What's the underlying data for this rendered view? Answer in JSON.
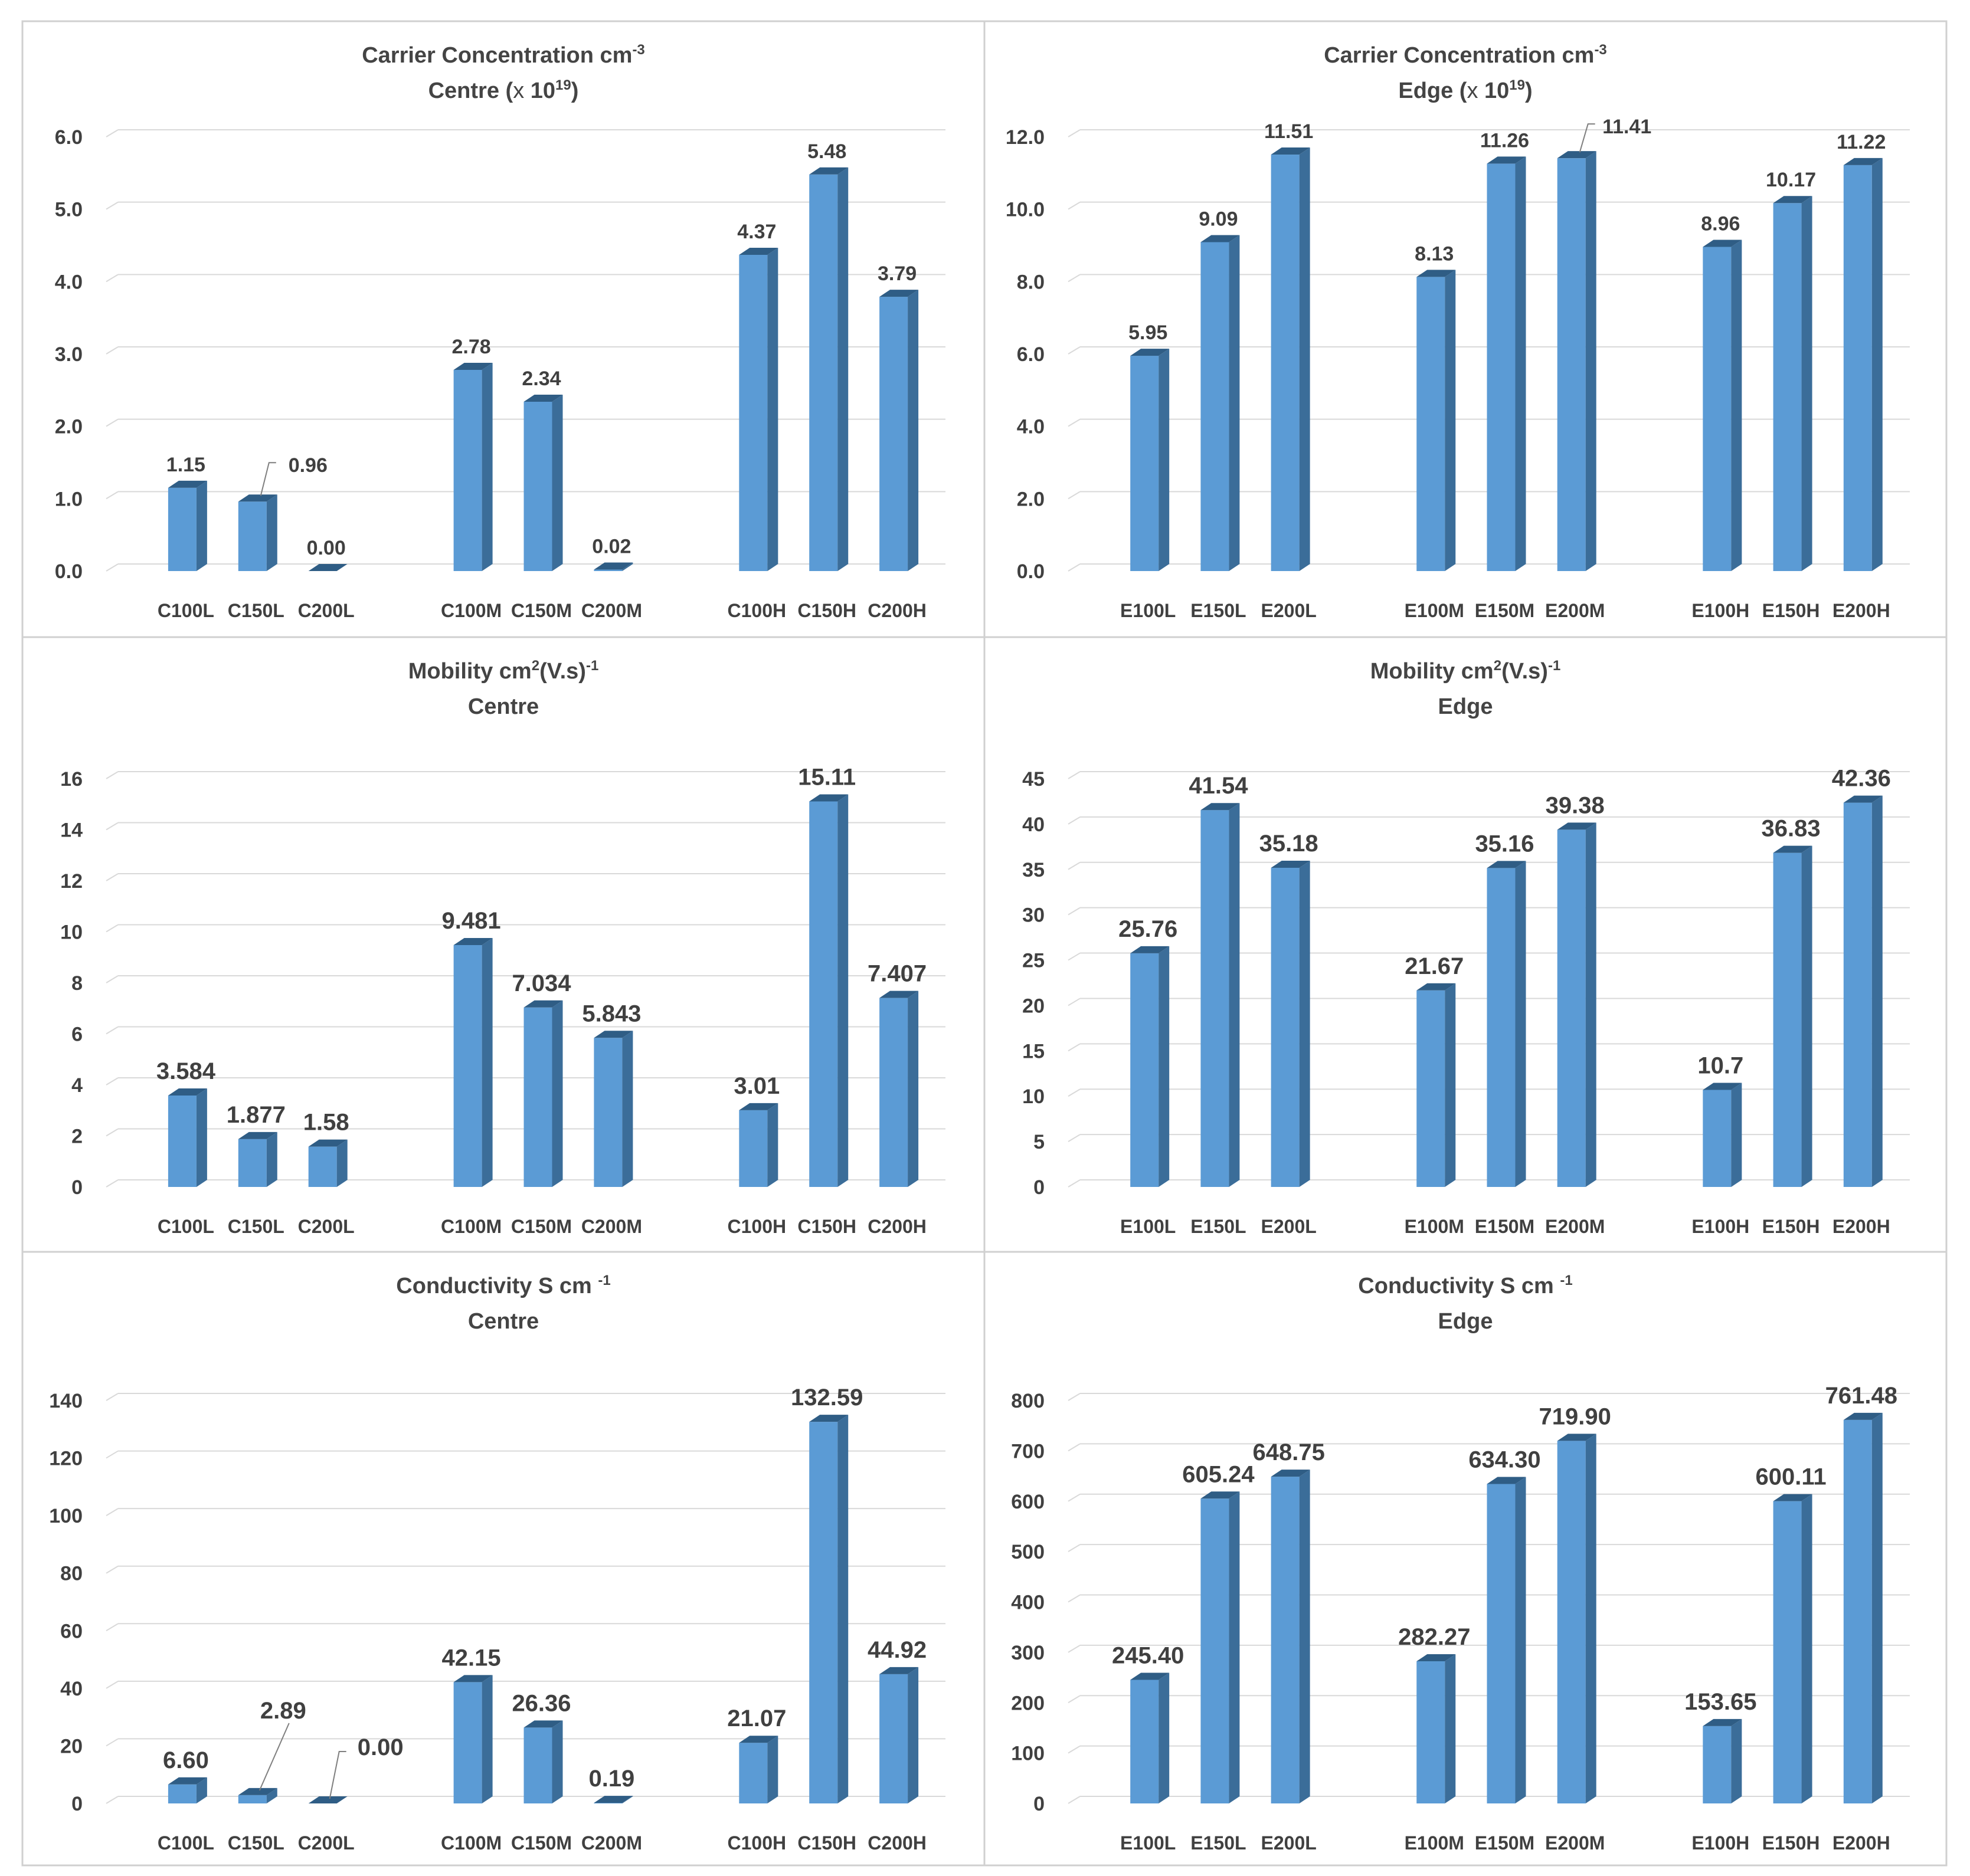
{
  "colors": {
    "bar_front": "#5b9bd5",
    "bar_side": "#3b6d99",
    "bar_top": "#2f5d85",
    "grid": "#d9d9d9",
    "text": "#404040",
    "panel_border": "#d0d0d0"
  },
  "chart_data": [
    {
      "type": "bar",
      "title": "Carrier Concentration cm-3",
      "title_parts": {
        "base": "Carrier Concentration cm",
        "sup": "-3"
      },
      "subtitle": "Centre (x 1019)",
      "subtitle_parts": {
        "pre": "Centre (",
        "times": "x",
        "mid": " 10",
        "sup": "19",
        "post": ")"
      },
      "categories": [
        "C100L",
        "C150L",
        "C200L",
        "C100M",
        "C150M",
        "C200M",
        "C100H",
        "C150H",
        "C200H"
      ],
      "values": [
        1.15,
        0.96,
        0.0,
        2.78,
        2.34,
        0.02,
        4.37,
        5.48,
        3.79
      ],
      "value_labels": [
        "1.15",
        "0.96",
        "0.00",
        "2.78",
        "2.34",
        "0.02",
        "4.37",
        "5.48",
        "3.79"
      ],
      "ylim": [
        0,
        6
      ],
      "yticks": [
        "0.0",
        "1.0",
        "2.0",
        "3.0",
        "4.0",
        "5.0",
        "6.0"
      ],
      "grid": true
    },
    {
      "type": "bar",
      "title": "Carrier Concentration cm-3",
      "title_parts": {
        "base": "Carrier Concentration cm",
        "sup": "-3"
      },
      "subtitle": "Edge (x 1019)",
      "subtitle_parts": {
        "pre": "Edge (",
        "times": "x",
        "mid": " 10",
        "sup": "19",
        "post": ")"
      },
      "categories": [
        "E100L",
        "E150L",
        "E200L",
        "E100M",
        "E150M",
        "E200M",
        "E100H",
        "E150H",
        "E200H"
      ],
      "values": [
        5.95,
        9.09,
        11.51,
        8.13,
        11.26,
        11.41,
        8.96,
        10.17,
        11.22
      ],
      "value_labels": [
        "5.95",
        "9.09",
        "11.51",
        "8.13",
        "11.26",
        "11.41",
        "8.96",
        "10.17",
        "11.22"
      ],
      "ylim": [
        0,
        12
      ],
      "yticks": [
        "0.0",
        "2.0",
        "4.0",
        "6.0",
        "8.0",
        "10.0",
        "12.0"
      ],
      "grid": true
    },
    {
      "type": "bar",
      "title": "Mobility cm2(V.s)-1",
      "title_parts": {
        "base": "Mobility   cm",
        "sup1": "2",
        "mid": "(V.s)",
        "sup2": "-1"
      },
      "subtitle": "Centre",
      "categories": [
        "C100L",
        "C150L",
        "C200L",
        "C100M",
        "C150M",
        "C200M",
        "C100H",
        "C150H",
        "C200H"
      ],
      "values": [
        3.584,
        1.877,
        1.58,
        9.481,
        7.034,
        5.843,
        3.01,
        15.11,
        7.407
      ],
      "value_labels": [
        "3.584",
        "1.877",
        "1.58",
        "9.481",
        "7.034",
        "5.843",
        "3.01",
        "15.11",
        "7.407"
      ],
      "ylim": [
        0,
        16
      ],
      "yticks": [
        "0",
        "2",
        "4",
        "6",
        "8",
        "10",
        "12",
        "14",
        "16"
      ],
      "grid": true
    },
    {
      "type": "bar",
      "title": "Mobility cm2(V.s)-1",
      "title_parts": {
        "base": "Mobility   cm",
        "sup1": "2",
        "mid": "(V.s)",
        "sup2": "-1"
      },
      "subtitle": "Edge",
      "categories": [
        "E100L",
        "E150L",
        "E200L",
        "E100M",
        "E150M",
        "E200M",
        "E100H",
        "E150H",
        "E200H"
      ],
      "values": [
        25.76,
        41.54,
        35.18,
        21.67,
        35.16,
        39.38,
        10.7,
        36.83,
        42.36
      ],
      "value_labels": [
        "25.76",
        "41.54",
        "35.18",
        "21.67",
        "35.16",
        "39.38",
        "10.7",
        "36.83",
        "42.36"
      ],
      "ylim": [
        0,
        45
      ],
      "yticks": [
        "0",
        "5",
        "10",
        "15",
        "20",
        "25",
        "30",
        "35",
        "40",
        "45"
      ],
      "grid": true
    },
    {
      "type": "bar",
      "title": "Conductivity S cm -1",
      "title_parts": {
        "base": "Conductivity S cm ",
        "sup": "-1"
      },
      "subtitle": "Centre",
      "categories": [
        "C100L",
        "C150L",
        "C200L",
        "C100M",
        "C150M",
        "C200M",
        "C100H",
        "C150H",
        "C200H"
      ],
      "values": [
        6.6,
        2.89,
        0.0,
        42.15,
        26.36,
        0.19,
        21.07,
        132.59,
        44.92
      ],
      "value_labels": [
        "6.60",
        "2.89",
        "0.00",
        "42.15",
        "26.36",
        "0.19",
        "21.07",
        "132.59",
        "44.92"
      ],
      "ylim": [
        0,
        140
      ],
      "yticks": [
        "0",
        "20",
        "40",
        "60",
        "80",
        "100",
        "120",
        "140"
      ],
      "grid": true
    },
    {
      "type": "bar",
      "title": "Conductivity S cm -1",
      "title_parts": {
        "base": "Conductivity S cm ",
        "sup": "-1"
      },
      "subtitle": "Edge",
      "categories": [
        "E100L",
        "E150L",
        "E200L",
        "E100M",
        "E150M",
        "E200M",
        "E100H",
        "E150H",
        "E200H"
      ],
      "values": [
        245.4,
        605.24,
        648.75,
        282.27,
        634.3,
        719.9,
        153.65,
        600.11,
        761.48
      ],
      "value_labels": [
        "245.40",
        "605.24",
        "648.75",
        "282.27",
        "634.30",
        "719.90",
        "153.65",
        "600.11",
        "761.48"
      ],
      "ylim": [
        0,
        800
      ],
      "yticks": [
        "0",
        "100",
        "200",
        "300",
        "400",
        "500",
        "600",
        "700",
        "800"
      ],
      "grid": true
    }
  ]
}
